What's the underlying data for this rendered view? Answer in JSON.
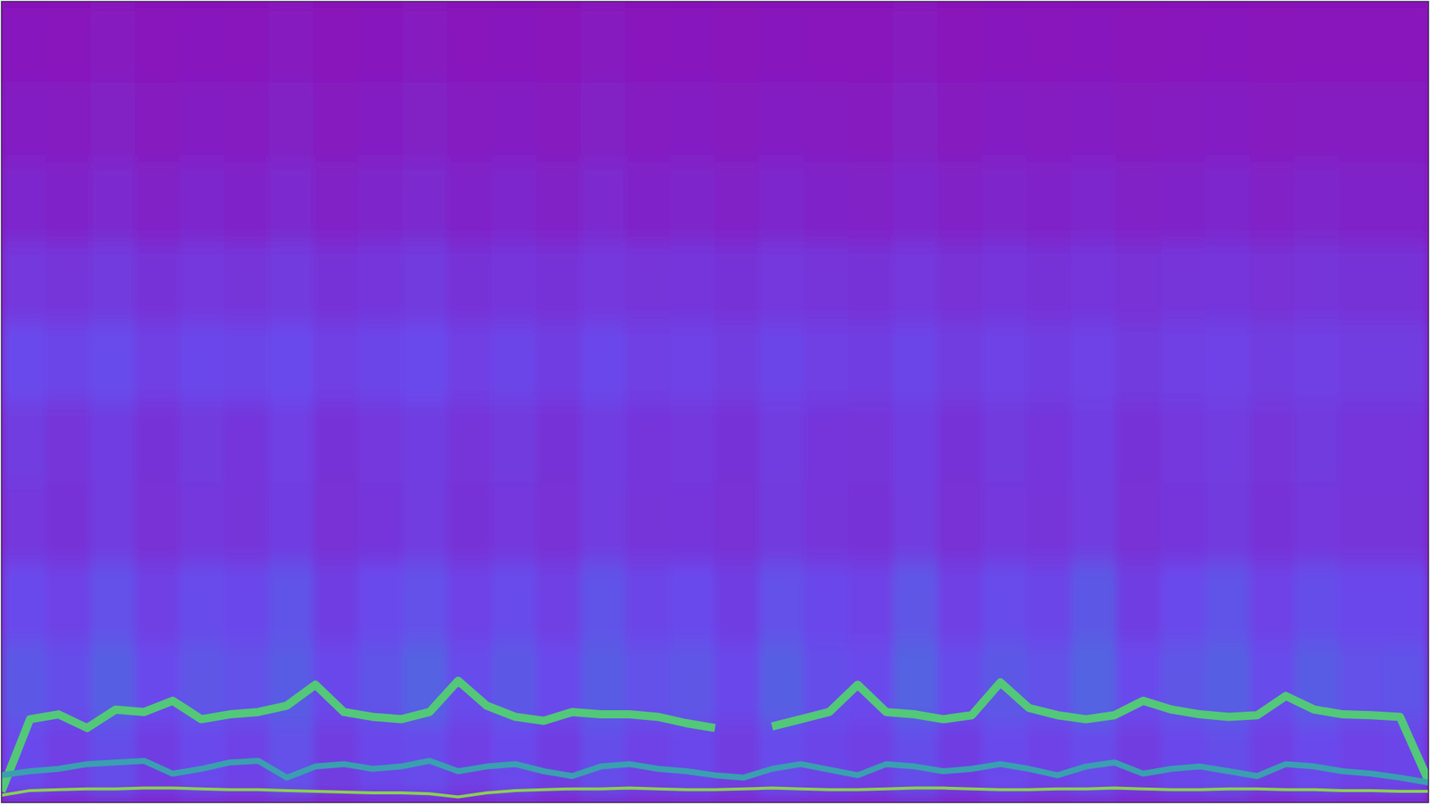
{
  "chart_data": {
    "type": "spectrogram",
    "tick_labels": false,
    "xlim": [
      0,
      100
    ],
    "ylim": [
      0,
      100
    ],
    "zlim": [
      0,
      1
    ],
    "cells": [
      [
        0.3,
        0.26,
        0.32,
        0.25,
        0.3,
        0.27,
        0.33,
        0.24,
        0.29,
        0.31,
        0.26,
        0.3,
        0.25,
        0.32,
        0.27,
        0.29,
        0.24,
        0.31,
        0.28,
        0.26,
        0.32,
        0.25,
        0.3,
        0.27,
        0.31,
        0.24,
        0.29,
        0.32,
        0.26,
        0.3,
        0.27,
        0.28
      ],
      [
        0.36,
        0.32,
        0.38,
        0.3,
        0.35,
        0.33,
        0.37,
        0.29,
        0.34,
        0.39,
        0.31,
        0.36,
        0.3,
        0.37,
        0.33,
        0.35,
        0.29,
        0.38,
        0.32,
        0.3,
        0.39,
        0.31,
        0.36,
        0.33,
        0.4,
        0.3,
        0.35,
        0.38,
        0.31,
        0.37,
        0.33,
        0.34
      ],
      [
        0.3,
        0.27,
        0.33,
        0.26,
        0.31,
        0.29,
        0.34,
        0.25,
        0.3,
        0.33,
        0.27,
        0.31,
        0.26,
        0.34,
        0.28,
        0.3,
        0.25,
        0.33,
        0.29,
        0.27,
        0.35,
        0.26,
        0.31,
        0.28,
        0.36,
        0.25,
        0.3,
        0.34,
        0.27,
        0.32,
        0.29,
        0.29
      ],
      [
        0.22,
        0.19,
        0.24,
        0.18,
        0.22,
        0.2,
        0.25,
        0.18,
        0.21,
        0.24,
        0.19,
        0.22,
        0.18,
        0.24,
        0.2,
        0.21,
        0.18,
        0.23,
        0.2,
        0.19,
        0.24,
        0.18,
        0.22,
        0.2,
        0.24,
        0.18,
        0.21,
        0.23,
        0.19,
        0.22,
        0.2,
        0.2
      ],
      [
        0.24,
        0.2,
        0.25,
        0.19,
        0.23,
        0.21,
        0.26,
        0.19,
        0.22,
        0.25,
        0.2,
        0.23,
        0.19,
        0.25,
        0.21,
        0.22,
        0.19,
        0.24,
        0.21,
        0.2,
        0.25,
        0.19,
        0.23,
        0.21,
        0.25,
        0.19,
        0.22,
        0.24,
        0.2,
        0.23,
        0.21,
        0.21
      ],
      [
        0.3,
        0.28,
        0.31,
        0.26,
        0.29,
        0.28,
        0.3,
        0.26,
        0.28,
        0.3,
        0.26,
        0.28,
        0.25,
        0.29,
        0.26,
        0.27,
        0.24,
        0.28,
        0.26,
        0.25,
        0.28,
        0.24,
        0.27,
        0.25,
        0.27,
        0.23,
        0.26,
        0.27,
        0.24,
        0.26,
        0.24,
        0.24
      ],
      [
        0.22,
        0.2,
        0.23,
        0.19,
        0.22,
        0.2,
        0.23,
        0.19,
        0.21,
        0.23,
        0.19,
        0.21,
        0.19,
        0.22,
        0.2,
        0.21,
        0.19,
        0.22,
        0.2,
        0.19,
        0.22,
        0.18,
        0.21,
        0.19,
        0.21,
        0.18,
        0.2,
        0.21,
        0.18,
        0.2,
        0.19,
        0.19
      ],
      [
        0.14,
        0.12,
        0.15,
        0.11,
        0.14,
        0.12,
        0.15,
        0.11,
        0.13,
        0.15,
        0.12,
        0.14,
        0.11,
        0.15,
        0.12,
        0.13,
        0.11,
        0.14,
        0.12,
        0.11,
        0.14,
        0.11,
        0.13,
        0.12,
        0.14,
        0.11,
        0.12,
        0.14,
        0.11,
        0.13,
        0.12,
        0.12
      ],
      [
        0.09,
        0.08,
        0.1,
        0.07,
        0.09,
        0.08,
        0.1,
        0.07,
        0.09,
        0.1,
        0.08,
        0.09,
        0.07,
        0.1,
        0.08,
        0.09,
        0.07,
        0.09,
        0.08,
        0.07,
        0.1,
        0.07,
        0.09,
        0.08,
        0.09,
        0.07,
        0.08,
        0.09,
        0.07,
        0.08,
        0.08,
        0.08
      ],
      [
        0.06,
        0.05,
        0.07,
        0.05,
        0.06,
        0.05,
        0.07,
        0.04,
        0.06,
        0.07,
        0.05,
        0.06,
        0.04,
        0.07,
        0.05,
        0.06,
        0.04,
        0.06,
        0.05,
        0.05,
        0.07,
        0.04,
        0.06,
        0.05,
        0.06,
        0.04,
        0.05,
        0.06,
        0.04,
        0.05,
        0.05,
        0.05
      ]
    ],
    "x": [
      0,
      2,
      4,
      6,
      8,
      10,
      12,
      14,
      16,
      18,
      20,
      22,
      24,
      26,
      28,
      30,
      32,
      34,
      36,
      38,
      40,
      42,
      44,
      46,
      48,
      50,
      52,
      54,
      56,
      58,
      60,
      62,
      64,
      66,
      68,
      70,
      72,
      74,
      76,
      78,
      80,
      82,
      84,
      86,
      88,
      90,
      92,
      94,
      96,
      98,
      100
    ],
    "series": [
      {
        "type": "line",
        "color": "#52c878",
        "values": [
          1.4,
          10.4,
          11.0,
          9.3,
          11.6,
          11.3,
          12.7,
          10.4,
          11.0,
          11.3,
          12.1,
          14.7,
          11.3,
          10.7,
          10.4,
          11.3,
          15.2,
          12.1,
          10.7,
          10.2,
          11.3,
          11.0,
          11.0,
          10.7,
          9.9,
          9.3,
          null,
          9.5,
          10.4,
          11.3,
          14.7,
          11.3,
          11.0,
          10.4,
          10.9,
          15.0,
          11.8,
          10.9,
          10.4,
          10.9,
          12.7,
          11.6,
          11.0,
          10.7,
          10.9,
          13.3,
          11.6,
          11.0,
          10.9,
          10.7,
          2.7
        ]
      },
      {
        "type": "line",
        "color": "#3a9fb0",
        "values": [
          3.4,
          3.9,
          4.2,
          4.8,
          5.0,
          5.2,
          3.6,
          4.2,
          5.0,
          5.2,
          3.1,
          4.5,
          4.8,
          4.2,
          4.5,
          5.2,
          3.9,
          4.5,
          4.8,
          3.9,
          3.3,
          4.5,
          4.8,
          4.2,
          3.9,
          3.4,
          3.1,
          4.2,
          4.8,
          4.1,
          3.4,
          4.8,
          4.5,
          3.9,
          4.2,
          4.8,
          4.2,
          3.4,
          4.5,
          5.0,
          3.6,
          4.2,
          4.5,
          3.9,
          3.3,
          4.8,
          4.5,
          3.9,
          3.6,
          3.1,
          2.5
        ]
      },
      {
        "type": "line",
        "color": "#8ad050",
        "values": [
          0.9,
          1.5,
          1.6,
          1.7,
          1.7,
          1.8,
          1.8,
          1.7,
          1.6,
          1.6,
          1.5,
          1.4,
          1.3,
          1.2,
          1.2,
          1.1,
          0.7,
          1.2,
          1.5,
          1.6,
          1.7,
          1.7,
          1.8,
          1.7,
          1.6,
          1.6,
          1.7,
          1.8,
          1.7,
          1.6,
          1.6,
          1.7,
          1.8,
          1.8,
          1.7,
          1.6,
          1.6,
          1.7,
          1.7,
          1.8,
          1.7,
          1.6,
          1.6,
          1.7,
          1.7,
          1.6,
          1.6,
          1.5,
          1.5,
          1.4,
          1.4
        ]
      }
    ]
  }
}
